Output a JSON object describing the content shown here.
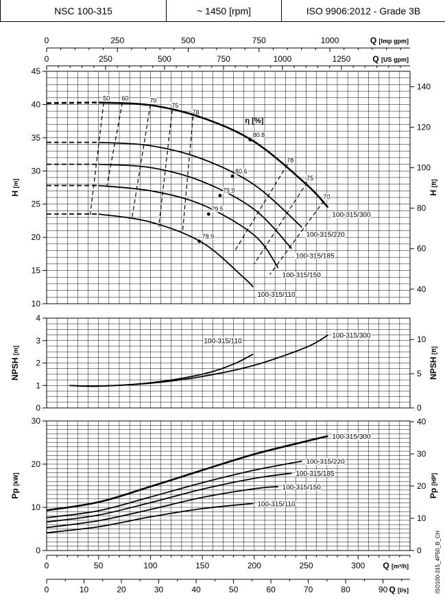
{
  "header": {
    "model": "NSC 100-315",
    "speed": "~ 1450 [rpm]",
    "standard": "ISO 9906:2012 - Grade 3B"
  },
  "side_code": "ISO100-315_4P50_B_CH",
  "chart_data": {
    "type": "line",
    "x_axes": [
      {
        "label": "Q [Imp gpm]",
        "ticks": [
          "0",
          "250",
          "500",
          "750",
          "1000"
        ],
        "values": [
          0,
          250,
          500,
          750,
          1000
        ]
      },
      {
        "label": "Q [US gpm]",
        "ticks": [
          "0",
          "250",
          "500",
          "750",
          "1000",
          "1250"
        ],
        "values": [
          0,
          250,
          500,
          750,
          1000,
          1250
        ]
      },
      {
        "label": "Q [m³/h]",
        "ticks": [
          "0",
          "50",
          "100",
          "150",
          "200",
          "250",
          "300"
        ],
        "values": [
          0,
          50,
          100,
          150,
          200,
          250,
          300
        ]
      },
      {
        "label": "Q [l/s]",
        "ticks": [
          "0",
          "10",
          "20",
          "30",
          "40",
          "50",
          "60",
          "70",
          "80",
          "90"
        ],
        "values": [
          0,
          10,
          20,
          30,
          40,
          50,
          60,
          70,
          80,
          90
        ]
      }
    ],
    "xlim_m3h": [
      0,
      350
    ],
    "panels": [
      {
        "name": "head",
        "ylabel_left": "H [m]",
        "ylim_left": [
          10,
          45
        ],
        "ticks_left": [
          "10",
          "15",
          "20",
          "25",
          "30",
          "35",
          "40",
          "45"
        ],
        "tick_values_left": [
          10,
          15,
          20,
          25,
          30,
          35,
          40,
          45
        ],
        "ylabel_right": "H [ft]",
        "ticks_right": [
          "40",
          "60",
          "80",
          "100",
          "120",
          "140"
        ],
        "tick_values_right": [
          40,
          60,
          80,
          100,
          120,
          140
        ],
        "series": [
          {
            "name": "100-315/300",
            "x": [
              0,
              50,
              100,
              150,
              200,
              250,
              271
            ],
            "y": [
              40.2,
              40.3,
              39.9,
              38.0,
              34.4,
              28.0,
              24.5
            ]
          },
          {
            "name": "100-315/220",
            "x": [
              0,
              50,
              100,
              150,
              200,
              246
            ],
            "y": [
              34.3,
              34.3,
              33.8,
              31.8,
              27.9,
              21.5
            ]
          },
          {
            "name": "100-315/185",
            "x": [
              0,
              50,
              100,
              150,
              200,
              236
            ],
            "y": [
              31.0,
              31.0,
              30.5,
              28.4,
              24.2,
              18.3
            ]
          },
          {
            "name": "100-315/150",
            "x": [
              0,
              50,
              100,
              150,
              200,
              223
            ],
            "y": [
              27.8,
              27.8,
              27.0,
              24.9,
              20.3,
              15.4
            ]
          },
          {
            "name": "100-315/110",
            "x": [
              0,
              50,
              100,
              150,
              190,
              199
            ],
            "y": [
              23.5,
              23.5,
              22.3,
              19.2,
              13.9,
              12.5
            ]
          }
        ],
        "efficiency_title": "η [%]",
        "efficiency_lines": [
          {
            "label": "50",
            "x": [
              55,
              42
            ],
            "y": [
              40.3,
              23.4
            ]
          },
          {
            "label": "60",
            "x": [
              73,
              58
            ],
            "y": [
              40.3,
              27.7
            ]
          },
          {
            "label": "70",
            "x": [
              100,
              82
            ],
            "y": [
              40.0,
              22.7
            ]
          },
          {
            "label": "75",
            "x": [
              121,
              108
            ],
            "y": [
              39.2,
              21.6
            ]
          },
          {
            "label": "78",
            "x": [
              141,
              131
            ],
            "y": [
              38.2,
              20.9
            ]
          },
          {
            "label": "78",
            "x": [
              232,
              181
            ],
            "y": [
              31.0,
              17.9
            ]
          },
          {
            "label": "75",
            "x": [
              251,
              200
            ],
            "y": [
              28.3,
              16.0
            ]
          },
          {
            "label": "70",
            "x": [
              267,
              215
            ],
            "y": [
              25.5,
              14.4
            ]
          }
        ],
        "efficiency_points": [
          {
            "label": "80.8",
            "x": 196,
            "y": 34.7
          },
          {
            "label": "80.6",
            "x": 179,
            "y": 29.2
          },
          {
            "label": "79.9",
            "x": 167,
            "y": 26.3
          },
          {
            "label": "79.5",
            "x": 156,
            "y": 23.5
          },
          {
            "label": "78.9",
            "x": 147,
            "y": 19.4
          }
        ]
      },
      {
        "name": "npsh",
        "ylabel_left": "NPSH [m]",
        "ylim_left": [
          0,
          4
        ],
        "ticks_left": [
          "0",
          "1",
          "2",
          "3",
          "4"
        ],
        "tick_values_left": [
          0,
          1,
          2,
          3,
          4
        ],
        "ylabel_right": "NPSH [ft]",
        "ticks_right": [
          "0",
          "5",
          "10"
        ],
        "tick_values_right": [
          0,
          5,
          10
        ],
        "series": [
          {
            "name": "100-315/300",
            "x": [
              22,
              50,
              100,
              150,
              200,
              250,
              271
            ],
            "y": [
              1.0,
              0.97,
              1.1,
              1.4,
              1.9,
              2.7,
              3.25
            ]
          },
          {
            "name": "100-315/110",
            "x": [
              22,
              50,
              100,
              150,
              180,
              199
            ],
            "y": [
              1.0,
              0.97,
              1.12,
              1.5,
              1.95,
              2.4
            ]
          }
        ]
      },
      {
        "name": "power",
        "ylabel_left": "Pp [kW]",
        "ylim_left": [
          0,
          30
        ],
        "ticks_left": [
          "0",
          "10",
          "20",
          "30"
        ],
        "tick_values_left": [
          0,
          10,
          20,
          30
        ],
        "ylabel_right": "Pp [HP]",
        "ticks_right": [
          "0",
          "10",
          "20",
          "30",
          "40"
        ],
        "tick_values_right": [
          0,
          10,
          20,
          30,
          40
        ],
        "series": [
          {
            "name": "100-315/300",
            "x": [
              0,
              50,
              100,
              150,
              200,
              250,
              271
            ],
            "y": [
              9.3,
              11.2,
              14.8,
              18.6,
              22.3,
              25.3,
              26.5
            ]
          },
          {
            "name": "100-315/220",
            "x": [
              0,
              50,
              100,
              150,
              200,
              246
            ],
            "y": [
              7.6,
              9.2,
              12.4,
              15.7,
              18.6,
              20.7
            ]
          },
          {
            "name": "100-315/185",
            "x": [
              0,
              50,
              100,
              150,
              200,
              236
            ],
            "y": [
              6.6,
              8.2,
              11.1,
              14.2,
              16.7,
              17.9
            ]
          },
          {
            "name": "100-315/150",
            "x": [
              0,
              50,
              100,
              150,
              200,
              223
            ],
            "y": [
              5.3,
              6.9,
              9.5,
              12.3,
              14.3,
              14.8
            ]
          },
          {
            "name": "100-315/110",
            "x": [
              0,
              50,
              100,
              150,
              199
            ],
            "y": [
              4.1,
              5.5,
              7.8,
              9.7,
              10.9
            ]
          }
        ]
      }
    ]
  }
}
